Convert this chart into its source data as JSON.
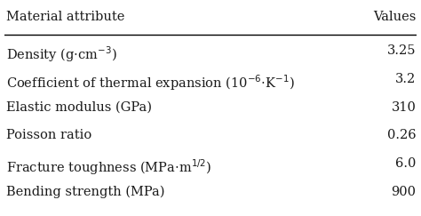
{
  "col_headers": [
    "Material attribute",
    "Values"
  ],
  "rows": [
    [
      "Density (g$\\cdot$cm$^{-3}$)",
      "3.25"
    ],
    [
      "Coefficient of thermal expansion (10$^{-6}$$\\cdot$K$^{-1}$)",
      "3.2"
    ],
    [
      "Elastic modulus (GPa)",
      "310"
    ],
    [
      "Poisson ratio",
      "0.26"
    ],
    [
      "Fracture toughness (MPa$\\cdot$m$^{1/2}$)",
      "6.0"
    ],
    [
      "Bending strength (MPa)",
      "900"
    ]
  ],
  "bg_color": "#ffffff",
  "text_color": "#1a1a1a",
  "header_fontsize": 10.5,
  "row_fontsize": 10.5,
  "line_color": "#000000",
  "fig_width": 4.74,
  "fig_height": 2.43,
  "dpi": 100
}
